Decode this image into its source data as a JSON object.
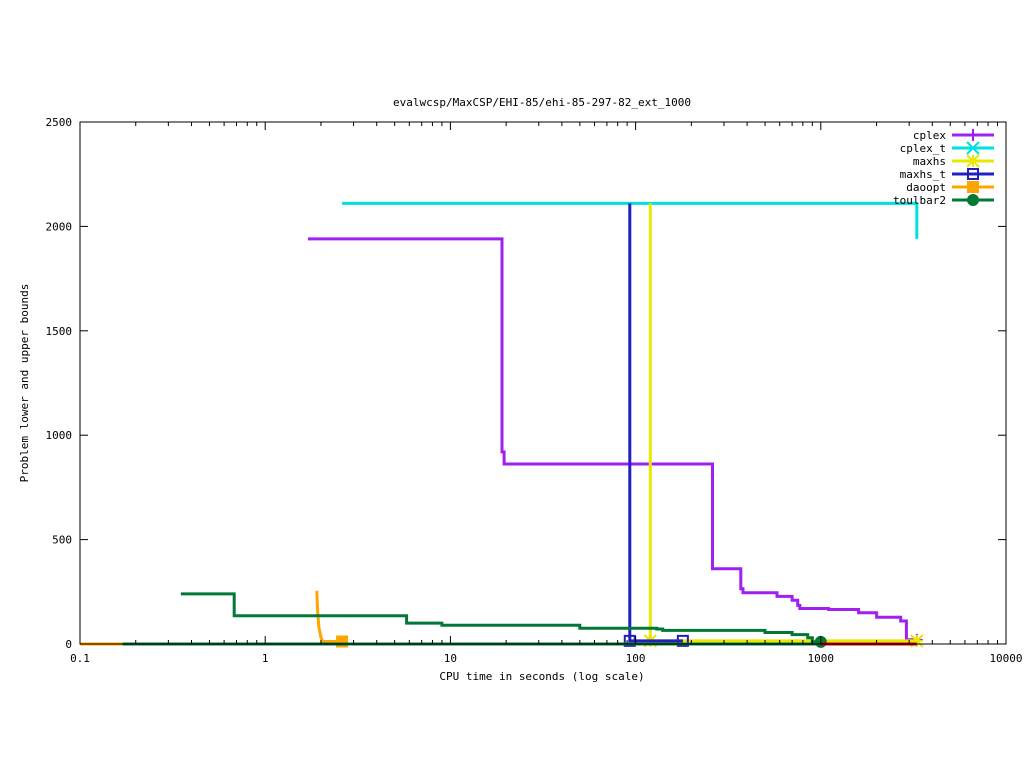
{
  "chart_data": {
    "type": "line",
    "title": "evalwcsp/MaxCSP/EHI-85/ehi-85-297-82_ext_1000",
    "xlabel": "CPU time in seconds (log scale)",
    "ylabel": "Problem lower and upper bounds",
    "xscale": "log",
    "xlim": [
      0.1,
      10000
    ],
    "ylim": [
      0,
      2500
    ],
    "x_ticks": [
      0.1,
      1,
      10,
      100,
      1000,
      10000
    ],
    "x_tick_labels": [
      "0.1",
      "1",
      "10",
      "100",
      "1000",
      "10000"
    ],
    "y_ticks": [
      0,
      500,
      1000,
      1500,
      2000,
      2500
    ],
    "y_tick_labels": [
      "0",
      "500",
      "1000",
      "1500",
      "2000",
      "2500"
    ],
    "grid": false,
    "legend_position": "top-right",
    "series": [
      {
        "name": "cplex",
        "color": "#a020f0",
        "marker": "plus",
        "step": true,
        "points": [
          [
            1.7,
            1940
          ],
          [
            19,
            1940
          ],
          [
            19,
            920
          ],
          [
            19.5,
            920
          ],
          [
            19.5,
            862
          ],
          [
            260,
            862
          ],
          [
            260,
            360
          ],
          [
            370,
            360
          ],
          [
            370,
            265
          ],
          [
            380,
            265
          ],
          [
            380,
            245
          ],
          [
            580,
            245
          ],
          [
            580,
            228
          ],
          [
            700,
            228
          ],
          [
            700,
            210
          ],
          [
            750,
            210
          ],
          [
            750,
            185
          ],
          [
            770,
            185
          ],
          [
            770,
            170
          ],
          [
            1100,
            170
          ],
          [
            1100,
            165
          ],
          [
            1600,
            165
          ],
          [
            1600,
            150
          ],
          [
            2000,
            150
          ],
          [
            2000,
            128
          ],
          [
            2700,
            128
          ],
          [
            2700,
            110
          ],
          [
            2900,
            110
          ],
          [
            2900,
            20
          ],
          [
            3300,
            20
          ]
        ],
        "markers": [
          [
            3300,
            20
          ]
        ]
      },
      {
        "name": "cplex_t",
        "color": "#00e0e0",
        "marker": "cross",
        "step": true,
        "points": [
          [
            2.6,
            2110
          ],
          [
            3300,
            2110
          ],
          [
            3300,
            1940
          ]
        ],
        "markers": []
      },
      {
        "name": "maxhs",
        "color": "#e8e800",
        "marker": "star",
        "step": true,
        "points": [
          [
            120,
            2110
          ],
          [
            120,
            15
          ],
          [
            3300,
            15
          ]
        ],
        "markers": [
          [
            120,
            15
          ],
          [
            3300,
            15
          ]
        ]
      },
      {
        "name": "maxhs_t",
        "color": "#2020c0",
        "marker": "square",
        "step": true,
        "points": [
          [
            93,
            2110
          ],
          [
            93,
            15
          ],
          [
            180,
            15
          ]
        ],
        "markers": [
          [
            93,
            15
          ],
          [
            180,
            15
          ]
        ]
      },
      {
        "name": "daoopt",
        "color": "#ffa500",
        "marker": "filled-square",
        "step": false,
        "points": [
          [
            1.9,
            255
          ],
          [
            1.92,
            150
          ],
          [
            1.95,
            80
          ],
          [
            2.0,
            30
          ],
          [
            2.05,
            12
          ],
          [
            2.6,
            12
          ]
        ],
        "markers": [
          [
            2.6,
            12
          ]
        ]
      },
      {
        "name": "toulbar2",
        "color": "#007838",
        "marker": "circle",
        "step": true,
        "points": [
          [
            0.35,
            240
          ],
          [
            0.68,
            240
          ],
          [
            0.68,
            135
          ],
          [
            5.8,
            135
          ],
          [
            5.8,
            100
          ],
          [
            9,
            100
          ],
          [
            9,
            90
          ],
          [
            50,
            90
          ],
          [
            50,
            75
          ],
          [
            130,
            75
          ],
          [
            130,
            72
          ],
          [
            140,
            72
          ],
          [
            140,
            65
          ],
          [
            500,
            65
          ],
          [
            500,
            55
          ],
          [
            700,
            55
          ],
          [
            700,
            45
          ],
          [
            850,
            45
          ],
          [
            850,
            30
          ],
          [
            900,
            30
          ],
          [
            900,
            10
          ],
          [
            1000,
            10
          ]
        ],
        "markers": [
          [
            1000,
            10
          ]
        ]
      },
      {
        "name": "",
        "color": "#d00000",
        "marker": "none",
        "step": false,
        "points": [
          [
            0.1,
            0
          ],
          [
            3300,
            0
          ]
        ],
        "markers": []
      },
      {
        "name": "",
        "color": "#ffa500",
        "marker": "none",
        "step": false,
        "points": [
          [
            0.1,
            0
          ],
          [
            0.17,
            0
          ]
        ],
        "markers": []
      },
      {
        "name": "",
        "color": "#007838",
        "marker": "none",
        "step": false,
        "points": [
          [
            0.17,
            0
          ],
          [
            1000,
            0
          ]
        ],
        "markers": []
      }
    ]
  }
}
